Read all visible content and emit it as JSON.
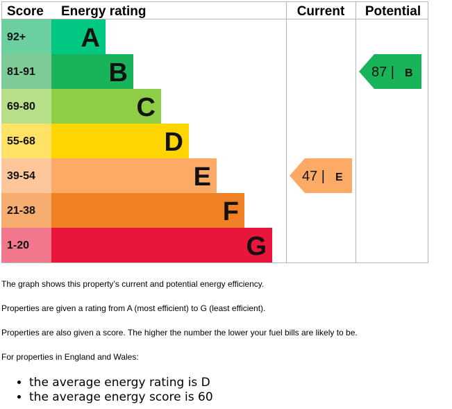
{
  "chart_data": {
    "type": "table",
    "headers": {
      "score": "Score",
      "rating": "Energy rating",
      "current": "Current",
      "potential": "Potential"
    },
    "bands": [
      {
        "letter": "A",
        "range": "92+",
        "color": "#00c781",
        "score_color": "#6ccf9f"
      },
      {
        "letter": "B",
        "range": "81-91",
        "color": "#19b459",
        "score_color": "#7fcb97"
      },
      {
        "letter": "C",
        "range": "69-80",
        "color": "#8dce46",
        "score_color": "#b7df8a"
      },
      {
        "letter": "D",
        "range": "55-68",
        "color": "#ffd500",
        "score_color": "#ffe266"
      },
      {
        "letter": "E",
        "range": "39-54",
        "color": "#fcaa65",
        "score_color": "#fdc79b"
      },
      {
        "letter": "F",
        "range": "21-38",
        "color": "#ef8023",
        "score_color": "#f6ad6f"
      },
      {
        "letter": "G",
        "range": "1-20",
        "color": "#e9153b",
        "score_color": "#f0778c"
      }
    ],
    "current": {
      "score": 47,
      "letter": "E",
      "color": "#fcaa65"
    },
    "potential": {
      "score": 87,
      "letter": "B",
      "color": "#19b459"
    }
  },
  "text": {
    "p0": "The graph shows this property’s current and potential energy efficiency.",
    "p1": "Properties are given a rating from A (most efficient) to G (least efficient).",
    "p2": "Properties are also given a score. The higher the number the lower your fuel bills are likely to be.",
    "p3": "For properties in England and Wales:",
    "averages": [
      "the average energy rating is D",
      "the average energy score is 60"
    ]
  }
}
